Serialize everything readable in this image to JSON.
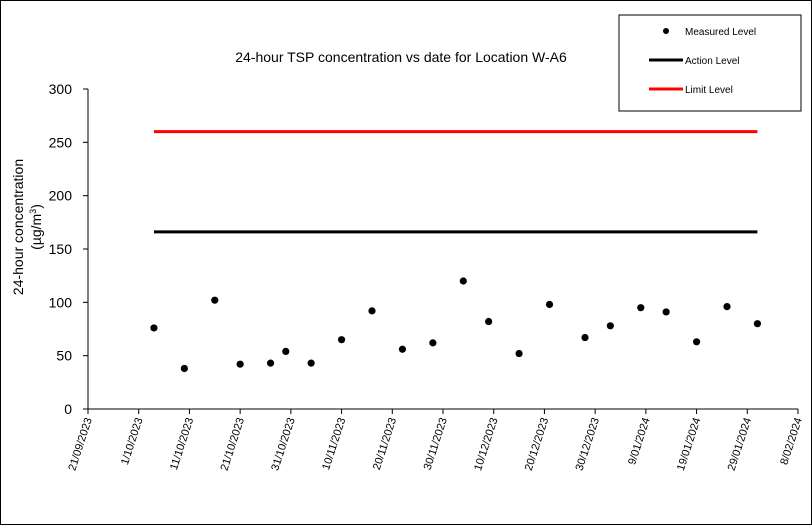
{
  "chart_data": {
    "type": "scatter",
    "title": "24-hour TSP concentration vs date for Location W-A6",
    "ylabel_line1": "24-hour concentration",
    "ylabel_line2_prefix": "(µg/m",
    "ylabel_line2_sup": "3",
    "ylabel_line2_suffix": ")",
    "ylim": [
      0,
      300
    ],
    "yticks": [
      0,
      50,
      100,
      150,
      200,
      250,
      300
    ],
    "xlim": [
      "2023-09-21",
      "2024-02-08"
    ],
    "xticks": [
      {
        "date": "2023-09-21",
        "label": "21/09/2023"
      },
      {
        "date": "2023-10-01",
        "label": "1/10/2023"
      },
      {
        "date": "2023-10-11",
        "label": "11/10/2023"
      },
      {
        "date": "2023-10-21",
        "label": "21/10/2023"
      },
      {
        "date": "2023-10-31",
        "label": "31/10/2023"
      },
      {
        "date": "2023-11-10",
        "label": "10/11/2023"
      },
      {
        "date": "2023-11-20",
        "label": "20/11/2023"
      },
      {
        "date": "2023-11-30",
        "label": "30/11/2023"
      },
      {
        "date": "2023-12-10",
        "label": "10/12/2023"
      },
      {
        "date": "2023-12-20",
        "label": "20/12/2023"
      },
      {
        "date": "2023-12-30",
        "label": "30/12/2023"
      },
      {
        "date": "2024-01-09",
        "label": "9/01/2024"
      },
      {
        "date": "2024-01-19",
        "label": "19/01/2024"
      },
      {
        "date": "2024-01-29",
        "label": "29/01/2024"
      },
      {
        "date": "2024-02-08",
        "label": "8/02/2024"
      }
    ],
    "series": [
      {
        "name": "Measured Level",
        "kind": "points",
        "color": "#000000",
        "points": [
          {
            "x": "2023-10-04",
            "y": 76
          },
          {
            "x": "2023-10-10",
            "y": 38
          },
          {
            "x": "2023-10-16",
            "y": 102
          },
          {
            "x": "2023-10-21",
            "y": 42
          },
          {
            "x": "2023-10-27",
            "y": 43
          },
          {
            "x": "2023-10-30",
            "y": 54
          },
          {
            "x": "2023-11-04",
            "y": 43
          },
          {
            "x": "2023-11-10",
            "y": 65
          },
          {
            "x": "2023-11-16",
            "y": 92
          },
          {
            "x": "2023-11-22",
            "y": 56
          },
          {
            "x": "2023-11-28",
            "y": 62
          },
          {
            "x": "2023-12-04",
            "y": 120
          },
          {
            "x": "2023-12-09",
            "y": 82
          },
          {
            "x": "2023-12-15",
            "y": 52
          },
          {
            "x": "2023-12-21",
            "y": 98
          },
          {
            "x": "2023-12-28",
            "y": 67
          },
          {
            "x": "2024-01-02",
            "y": 78
          },
          {
            "x": "2024-01-08",
            "y": 95
          },
          {
            "x": "2024-01-13",
            "y": 91
          },
          {
            "x": "2024-01-19",
            "y": 63
          },
          {
            "x": "2024-01-25",
            "y": 96
          },
          {
            "x": "2024-01-31",
            "y": 80
          }
        ]
      },
      {
        "name": "Action Level",
        "kind": "line",
        "color": "#000000",
        "y": 166,
        "x_start": "2023-10-04",
        "x_end": "2024-01-31"
      },
      {
        "name": "Limit Level",
        "kind": "line",
        "color": "#ff0000",
        "y": 260,
        "x_start": "2023-10-04",
        "x_end": "2024-01-31"
      }
    ],
    "legend_position": "top-right",
    "grid": false
  }
}
